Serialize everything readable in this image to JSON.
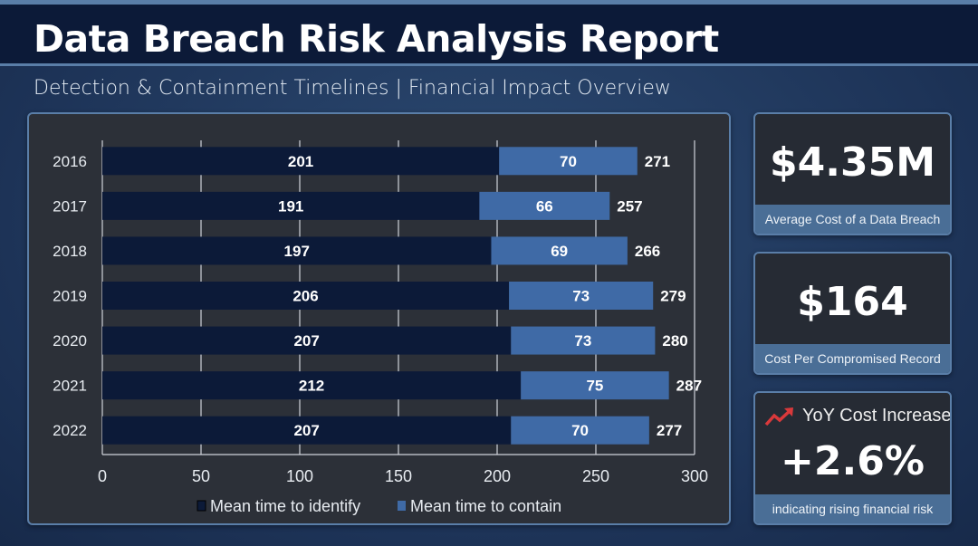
{
  "header": {
    "title": "Data Breach Risk Analysis Report",
    "subtitle": "Detection & Containment Timelines | Financial Impact Overview"
  },
  "chart_data": {
    "type": "bar",
    "orientation": "horizontal",
    "stacked": true,
    "categories": [
      "2016",
      "2017",
      "2018",
      "2019",
      "2020",
      "2021",
      "2022"
    ],
    "series": [
      {
        "name": "Mean time to identify",
        "values": [
          201,
          191,
          197,
          206,
          207,
          212,
          207
        ],
        "color": "#0c1a38"
      },
      {
        "name": "Mean time to contain",
        "values": [
          70,
          66,
          69,
          73,
          73,
          75,
          70
        ],
        "color": "#3f6aa6"
      }
    ],
    "totals": [
      271,
      257,
      266,
      279,
      280,
      287,
      277
    ],
    "xlim": [
      0,
      300
    ],
    "xticks": [
      0,
      50,
      100,
      150,
      200,
      250,
      300
    ],
    "grid": true,
    "legend": "bottom"
  },
  "cards": [
    {
      "value": "$4.35M",
      "label": "Average Cost of a Data Breach"
    },
    {
      "value": "$164",
      "label": "Cost Per Compromised Record"
    },
    {
      "heading": "YoY Cost Increase",
      "value": "+2.6%",
      "label": "indicating rising financial risk",
      "icon": "trending-up-icon",
      "icon_color": "#d9393b"
    }
  ]
}
